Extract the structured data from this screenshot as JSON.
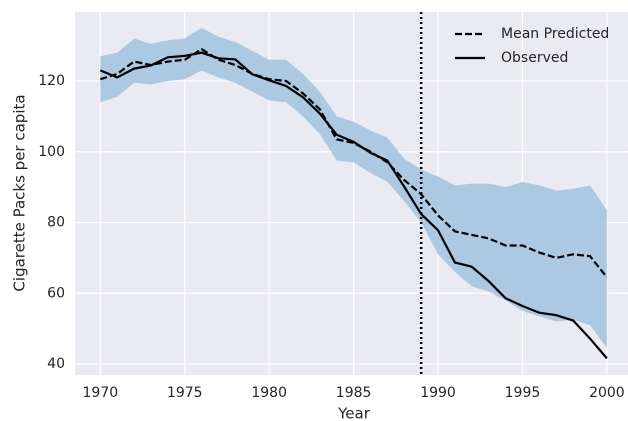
{
  "chart_data": {
    "type": "line",
    "xlabel": "Year",
    "ylabel": "Cigarette Packs per capita",
    "x": [
      1970,
      1971,
      1972,
      1973,
      1974,
      1975,
      1976,
      1977,
      1978,
      1979,
      1980,
      1981,
      1982,
      1983,
      1984,
      1985,
      1986,
      1987,
      1988,
      1989,
      1990,
      1991,
      1992,
      1993,
      1994,
      1995,
      1996,
      1997,
      1998,
      1999,
      2000
    ],
    "series": [
      {
        "name": "Mean Predicted",
        "color": "#000000",
        "dash": true,
        "values": [
          120.5,
          122,
          125.5,
          124.5,
          125.5,
          126,
          129,
          126,
          124.5,
          122,
          120.5,
          120,
          116.5,
          112,
          103.5,
          102.5,
          100,
          97,
          92,
          88,
          82,
          77.5,
          76.5,
          75.5,
          73.5,
          73.5,
          71.5,
          70,
          71,
          70.5,
          64.5
        ]
      },
      {
        "name": "Observed",
        "color": "#000000",
        "dash": false,
        "values": [
          123,
          121,
          123.5,
          124.4,
          126.7,
          127.1,
          128,
          126.4,
          126.1,
          121.9,
          120.2,
          118.6,
          115.4,
          110.8,
          104.8,
          102.8,
          99.7,
          97.5,
          90.1,
          82.4,
          77.8,
          68.7,
          67.5,
          63.4,
          58.6,
          56.4,
          54.5,
          53.8,
          52.3,
          47.2,
          41.6
        ]
      }
    ],
    "band": {
      "color": "#a5c5e0",
      "upper": [
        127,
        128,
        132,
        130.5,
        131.5,
        132,
        135,
        132.5,
        131,
        128.5,
        126,
        126,
        122,
        117,
        110,
        108.5,
        106,
        104,
        98,
        95,
        93,
        90.5,
        91,
        91,
        90,
        91.5,
        90.5,
        89,
        89.5,
        90.5,
        83.5
      ],
      "lower": [
        114,
        115.5,
        119.5,
        119,
        120,
        120.5,
        123,
        121,
        119.5,
        117,
        114.5,
        114,
        110,
        105,
        97.5,
        97,
        94,
        91.5,
        86,
        80,
        71,
        66,
        62,
        60.5,
        58,
        55,
        53.5,
        52,
        52.5,
        51,
        44.5
      ]
    },
    "vline": 1989,
    "xlim": [
      1968.5,
      2001.25
    ],
    "ylim": [
      36.9,
      139.5
    ],
    "xticks": [
      1970,
      1975,
      1980,
      1985,
      1990,
      1995,
      2000
    ],
    "yticks": [
      40,
      60,
      80,
      100,
      120
    ],
    "grid": true,
    "legend": "upper right",
    "background": "#eaeaf2"
  }
}
